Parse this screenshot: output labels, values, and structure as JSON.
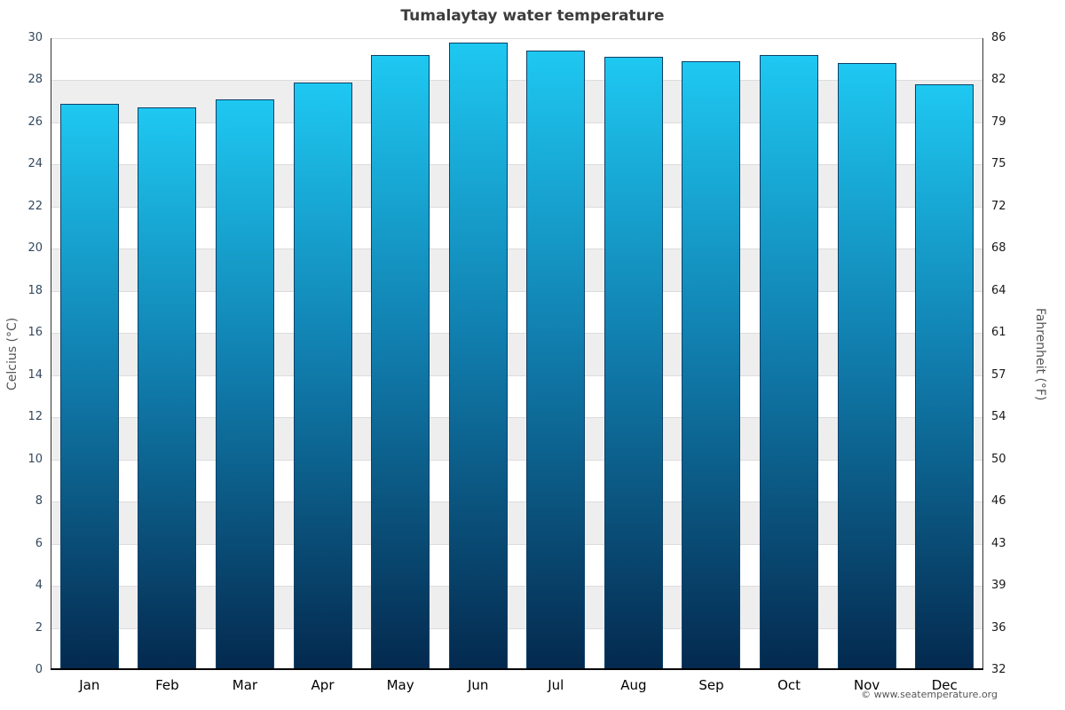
{
  "title": "Tumalaytay water temperature",
  "left_axis": {
    "label": "Celcius (°C)",
    "ticks": [
      0,
      2,
      4,
      6,
      8,
      10,
      12,
      14,
      16,
      18,
      20,
      22,
      24,
      26,
      28,
      30
    ]
  },
  "right_axis": {
    "label": "Fahrenheit (°F)",
    "ticks": [
      32,
      36,
      39,
      43,
      46,
      50,
      54,
      57,
      61,
      64,
      68,
      72,
      75,
      79,
      82,
      86
    ]
  },
  "footer": {
    "copyright": "© www.seatemperature.org"
  },
  "chart_data": {
    "type": "bar",
    "title": "Tumalaytay water temperature",
    "categories": [
      "Jan",
      "Feb",
      "Mar",
      "Apr",
      "May",
      "Jun",
      "Jul",
      "Aug",
      "Sep",
      "Oct",
      "Nov",
      "Dec"
    ],
    "values": [
      26.9,
      26.7,
      27.1,
      27.9,
      29.2,
      29.8,
      29.4,
      29.1,
      28.9,
      29.2,
      28.8,
      27.8
    ],
    "xlabel": "",
    "ylabel": "Celcius (°C)",
    "ylabel_right": "Fahrenheit (°F)",
    "ylim": [
      0,
      30
    ],
    "yticks": [
      0,
      2,
      4,
      6,
      8,
      10,
      12,
      14,
      16,
      18,
      20,
      22,
      24,
      26,
      28,
      30
    ],
    "right_tick_labels": [
      32,
      36,
      39,
      43,
      46,
      50,
      54,
      57,
      61,
      64,
      68,
      72,
      75,
      79,
      82,
      86
    ],
    "grid": true,
    "legend": "none",
    "colors": {
      "bar_top": "#1ec8f1",
      "bar_mid": "#1181b1",
      "bar_bottom": "#04294e",
      "bar_border": "#0d4068",
      "band_light": "#ffffff",
      "band_dark": "#eeeeee",
      "gridline": "#dcdcdc",
      "axis_line": "#333333"
    }
  }
}
